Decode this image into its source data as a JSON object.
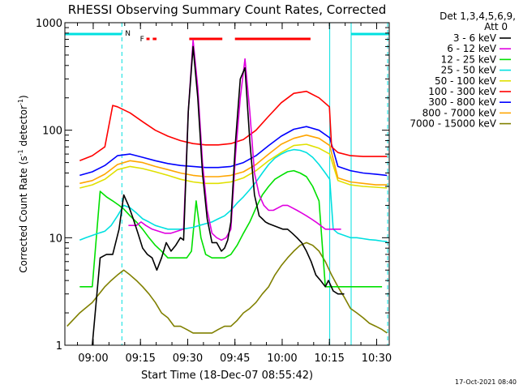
{
  "chart_data": {
    "type": "line",
    "title": "RHESSI Observing Summary Count Rates, Corrected",
    "xlabel": "Start Time (18-Dec-07 08:55:42)",
    "ylabel": "Corrected Count Rate (s",
    "ylabel_sup1": "-1",
    "ylabel_mid": " detector",
    "ylabel_sup2": "-1",
    "ylabel_end": ")",
    "x_start_min": -4.7,
    "x_end_min": 98.3,
    "ylim": [
      1,
      1000
    ],
    "yscale": "log",
    "x_ticks": [
      {
        "label": "09:00",
        "min": 4.3
      },
      {
        "label": "09:15",
        "min": 19.3
      },
      {
        "label": "09:30",
        "min": 34.3
      },
      {
        "label": "09:45",
        "min": 49.3
      },
      {
        "label": "10:00",
        "min": 64.3
      },
      {
        "label": "10:15",
        "min": 79.3
      },
      {
        "label": "10:30",
        "min": 94.3
      }
    ],
    "y_ticks": [
      {
        "label": "1",
        "value": 1
      },
      {
        "label": "10",
        "value": 10
      },
      {
        "label": "100",
        "value": 100
      },
      {
        "label": "1000",
        "value": 1000
      }
    ],
    "legend_header": [
      "Det 1,3,4,5,6,9,",
      "Att 0"
    ],
    "timestamp": "17-Oct-2021 08:40",
    "flag_labels": {
      "night": "N",
      "flare": "F"
    },
    "eclipse_bars": [
      [
        -4.7,
        13.4
      ],
      [
        86.2,
        98.3
      ]
    ],
    "saa_lines": [
      13.4,
      79.4,
      86.2,
      97.8
    ],
    "flare_bars": [
      [
        21.2,
        22.2
      ],
      [
        23.2,
        24.4
      ],
      [
        34.8,
        45.3
      ],
      [
        49.3,
        73.3
      ]
    ],
    "series": [
      {
        "name": "3 - 6 keV",
        "color": "#000000",
        "x": [
          4.0,
          6.5,
          8.5,
          10.5,
          12.5,
          14.0,
          15.5,
          17.0,
          18.5,
          20.0,
          21.5,
          23.0,
          24.5,
          26.0,
          27.5,
          29.0,
          30.5,
          32.0,
          33.0,
          34.5,
          36.0,
          37.5,
          39.0,
          40.5,
          42.0,
          43.5,
          45.0,
          46.0,
          47.0,
          48.0,
          49.5,
          51.0,
          52.5,
          54.0,
          55.5,
          57.0,
          58.0,
          59.0,
          60.0,
          61.5,
          63.0,
          64.5,
          66.0,
          67.5,
          69.0,
          70.5,
          72.0,
          73.5,
          75.0,
          76.5,
          78.0,
          79.0,
          80.5,
          82.0,
          83.0,
          84.0
        ],
        "y": [
          1.0,
          6.5,
          7.0,
          7.0,
          12.0,
          25.0,
          20.0,
          15.0,
          11.0,
          8.0,
          7.0,
          6.5,
          5.0,
          6.5,
          9.0,
          7.5,
          8.5,
          10.0,
          9.5,
          150.0,
          600.0,
          200.0,
          40.0,
          15.0,
          9.0,
          9.0,
          7.5,
          8.0,
          9.5,
          14.0,
          80.0,
          300.0,
          380.0,
          80.0,
          25.0,
          16.0,
          15.0,
          14.0,
          13.5,
          13.0,
          12.5,
          12.0,
          12.0,
          11.0,
          10.0,
          9.0,
          7.5,
          6.0,
          4.5,
          4.0,
          3.5,
          4.0,
          3.2,
          3.0,
          3.0,
          3.0
        ]
      },
      {
        "name": "6 - 12 keV",
        "color": "#e000e0",
        "x": [
          15.5,
          16.5,
          18.0,
          19.5,
          21.0,
          23.0,
          25.0,
          27.0,
          29.0,
          31.0,
          33.0,
          34.5,
          36.0,
          37.5,
          39.0,
          40.5,
          42.0,
          43.5,
          45.0,
          46.5,
          48.0,
          49.5,
          51.0,
          52.5,
          54.0,
          55.5,
          57.0,
          58.5,
          60.0,
          61.5,
          63.0,
          64.5,
          66.0,
          67.5,
          69.0,
          70.5,
          72.0,
          73.5,
          75.0,
          76.5,
          78.0,
          79.0,
          80.5,
          82.0,
          83.0
        ],
        "y": [
          13.0,
          13.0,
          13.0,
          14.0,
          13.0,
          12.0,
          11.5,
          11.0,
          11.0,
          11.5,
          12.0,
          150.0,
          690.0,
          250.0,
          50.0,
          18.0,
          11.0,
          10.0,
          9.5,
          10.0,
          12.0,
          60.0,
          200.0,
          460.0,
          150.0,
          40.0,
          25.0,
          20.0,
          18.0,
          18.0,
          19.0,
          20.0,
          20.0,
          19.0,
          18.0,
          17.0,
          16.0,
          15.0,
          14.0,
          13.0,
          12.0,
          12.0,
          12.0,
          12.0,
          12.0
        ]
      },
      {
        "name": "12 - 25 keV",
        "color": "#00e000",
        "x": [
          0.0,
          2.0,
          4.0,
          6.5,
          8.5,
          10.5,
          12.5,
          14.0,
          16.0,
          18.0,
          20.0,
          22.0,
          24.0,
          26.0,
          28.0,
          30.0,
          32.0,
          34.0,
          35.5,
          37.0,
          38.5,
          40.0,
          42.0,
          44.0,
          46.0,
          48.0,
          50.0,
          52.0,
          54.0,
          56.0,
          58.0,
          60.0,
          62.0,
          64.0,
          66.0,
          68.0,
          70.0,
          72.0,
          74.0,
          76.0,
          78.0,
          79.0,
          80.5,
          82.0,
          84.0,
          86.0,
          88.0,
          90.0,
          92.0,
          94.0,
          96.0
        ],
        "y": [
          3.5,
          3.5,
          3.5,
          27.0,
          24.0,
          22.0,
          20.0,
          18.5,
          16.0,
          14.0,
          12.0,
          10.0,
          8.5,
          7.5,
          6.5,
          6.5,
          6.5,
          6.5,
          7.5,
          22.0,
          10.0,
          7.0,
          6.5,
          6.5,
          6.5,
          7.0,
          8.5,
          11.0,
          14.0,
          19.0,
          25.0,
          30.0,
          35.0,
          38.0,
          41.0,
          42.0,
          40.0,
          37.0,
          30.0,
          22.0,
          3.5,
          3.5,
          3.5,
          3.5,
          3.5,
          3.5,
          3.5,
          3.5,
          3.5,
          3.5,
          3.5
        ]
      },
      {
        "name": "25 - 50 keV",
        "color": "#00e0e0",
        "x": [
          0.0,
          2.0,
          4.0,
          6.0,
          8.0,
          10.0,
          12.0,
          14.0,
          16.0,
          18.0,
          20.0,
          22.0,
          24.0,
          26.0,
          28.0,
          30.0,
          32.0,
          34.0,
          36.0,
          38.0,
          40.0,
          42.0,
          44.0,
          46.0,
          48.0,
          50.0,
          52.0,
          54.0,
          56.0,
          58.0,
          60.0,
          62.0,
          64.0,
          66.0,
          68.0,
          70.0,
          72.0,
          74.0,
          76.0,
          78.0,
          79.4,
          80.5,
          82.0,
          84.0,
          86.0,
          88.0,
          90.0,
          92.0,
          94.0,
          96.0,
          97.6
        ],
        "y": [
          9.5,
          10.0,
          10.5,
          11.0,
          11.5,
          13.0,
          16.0,
          20.0,
          19.0,
          17.0,
          15.0,
          14.0,
          13.0,
          12.5,
          12.0,
          12.0,
          12.0,
          12.2,
          12.5,
          13.0,
          13.5,
          14.0,
          15.0,
          16.0,
          18.0,
          21.0,
          24.0,
          28.0,
          33.0,
          40.0,
          48.0,
          55.0,
          60.0,
          64.0,
          66.0,
          65.0,
          62.0,
          56.0,
          48.0,
          40.0,
          35.0,
          12.0,
          11.0,
          10.5,
          10.0,
          10.0,
          9.8,
          9.6,
          9.5,
          9.3,
          9.2
        ]
      },
      {
        "name": "50 - 100 keV",
        "color": "#e0e000",
        "x": [
          0.0,
          4.0,
          8.0,
          12.0,
          16.0,
          20.0,
          24.0,
          28.0,
          32.0,
          36.0,
          40.0,
          44.0,
          48.0,
          52.0,
          56.0,
          60.0,
          64.0,
          68.0,
          72.0,
          76.0,
          79.4,
          82.0,
          86.0,
          90.0,
          94.0,
          97.6
        ],
        "y": [
          29.0,
          31.0,
          35.0,
          43.0,
          46.0,
          44.0,
          41.0,
          38.0,
          35.0,
          33.0,
          32.0,
          32.0,
          33.0,
          36.0,
          42.0,
          52.0,
          62.0,
          72.0,
          74.0,
          68.0,
          60.0,
          34.0,
          31.0,
          30.0,
          29.5,
          29.0
        ]
      },
      {
        "name": "100 - 300 keV",
        "color": "#ff0000",
        "x": [
          0.0,
          4.0,
          8.0,
          10.5,
          12.0,
          16.0,
          20.0,
          24.0,
          28.0,
          32.0,
          36.0,
          40.0,
          44.0,
          48.0,
          52.0,
          56.0,
          60.0,
          64.0,
          68.0,
          72.0,
          76.0,
          79.3,
          80.0,
          82.0,
          86.0,
          90.0,
          94.0,
          97.6
        ],
        "y": [
          52.0,
          58.0,
          70.0,
          170.0,
          165.0,
          145.0,
          120.0,
          100.0,
          88.0,
          80.0,
          75.0,
          73.0,
          73.0,
          75.0,
          82.0,
          100.0,
          135.0,
          180.0,
          220.0,
          230.0,
          200.0,
          165.0,
          70.0,
          62.0,
          58.0,
          57.0,
          57.0,
          57.0
        ]
      },
      {
        "name": "300 - 800 keV",
        "color": "#0000ff",
        "x": [
          0.0,
          4.0,
          8.0,
          12.0,
          16.0,
          20.0,
          24.0,
          28.0,
          32.0,
          36.0,
          40.0,
          44.0,
          48.0,
          52.0,
          56.0,
          60.0,
          64.0,
          68.0,
          72.0,
          76.0,
          79.4,
          82.0,
          86.0,
          90.0,
          94.0,
          97.6
        ],
        "y": [
          38.0,
          41.0,
          47.0,
          58.0,
          60.0,
          56.0,
          52.0,
          49.0,
          47.0,
          46.0,
          45.0,
          45.0,
          46.0,
          50.0,
          58.0,
          72.0,
          88.0,
          102.0,
          108.0,
          100.0,
          85.0,
          46.0,
          42.0,
          40.0,
          39.0,
          38.0
        ]
      },
      {
        "name": "800 - 7000 keV",
        "color": "#ffa500",
        "x": [
          0.0,
          4.0,
          8.0,
          12.0,
          16.0,
          20.0,
          24.0,
          28.0,
          32.0,
          36.0,
          40.0,
          44.0,
          48.0,
          52.0,
          56.0,
          60.0,
          64.0,
          68.0,
          72.0,
          76.0,
          79.4,
          82.0,
          86.0,
          90.0,
          94.0,
          97.6
        ],
        "y": [
          32.0,
          34.0,
          39.0,
          48.0,
          52.0,
          50.0,
          46.0,
          43.0,
          40.0,
          38.0,
          37.0,
          37.0,
          38.0,
          41.0,
          48.0,
          60.0,
          74.0,
          84.0,
          90.0,
          84.0,
          72.0,
          36.0,
          33.0,
          32.0,
          31.0,
          31.0
        ]
      },
      {
        "name": "7000 - 15000 keV",
        "color": "#808000",
        "x": [
          -4.0,
          0.0,
          4.0,
          8.0,
          10.0,
          12.0,
          14.0,
          16.0,
          18.0,
          20.0,
          22.0,
          24.0,
          26.0,
          28.0,
          30.0,
          32.0,
          34.0,
          36.0,
          38.0,
          40.0,
          42.0,
          44.0,
          46.0,
          48.0,
          50.0,
          52.0,
          54.0,
          56.0,
          58.0,
          60.0,
          62.0,
          64.0,
          66.0,
          68.0,
          70.0,
          72.0,
          74.0,
          76.0,
          78.0,
          80.0,
          82.0,
          84.0,
          86.0,
          88.0,
          90.0,
          92.0,
          94.0,
          96.0,
          97.6
        ],
        "y": [
          1.5,
          2.0,
          2.5,
          3.5,
          4.0,
          4.5,
          5.0,
          4.5,
          4.0,
          3.5,
          3.0,
          2.5,
          2.0,
          1.8,
          1.5,
          1.5,
          1.4,
          1.3,
          1.3,
          1.3,
          1.3,
          1.4,
          1.5,
          1.5,
          1.7,
          2.0,
          2.2,
          2.5,
          3.0,
          3.5,
          4.5,
          5.5,
          6.5,
          7.5,
          8.5,
          9.0,
          8.5,
          7.5,
          6.0,
          4.5,
          3.5,
          2.8,
          2.2,
          2.0,
          1.8,
          1.6,
          1.5,
          1.4,
          1.3
        ]
      }
    ]
  }
}
